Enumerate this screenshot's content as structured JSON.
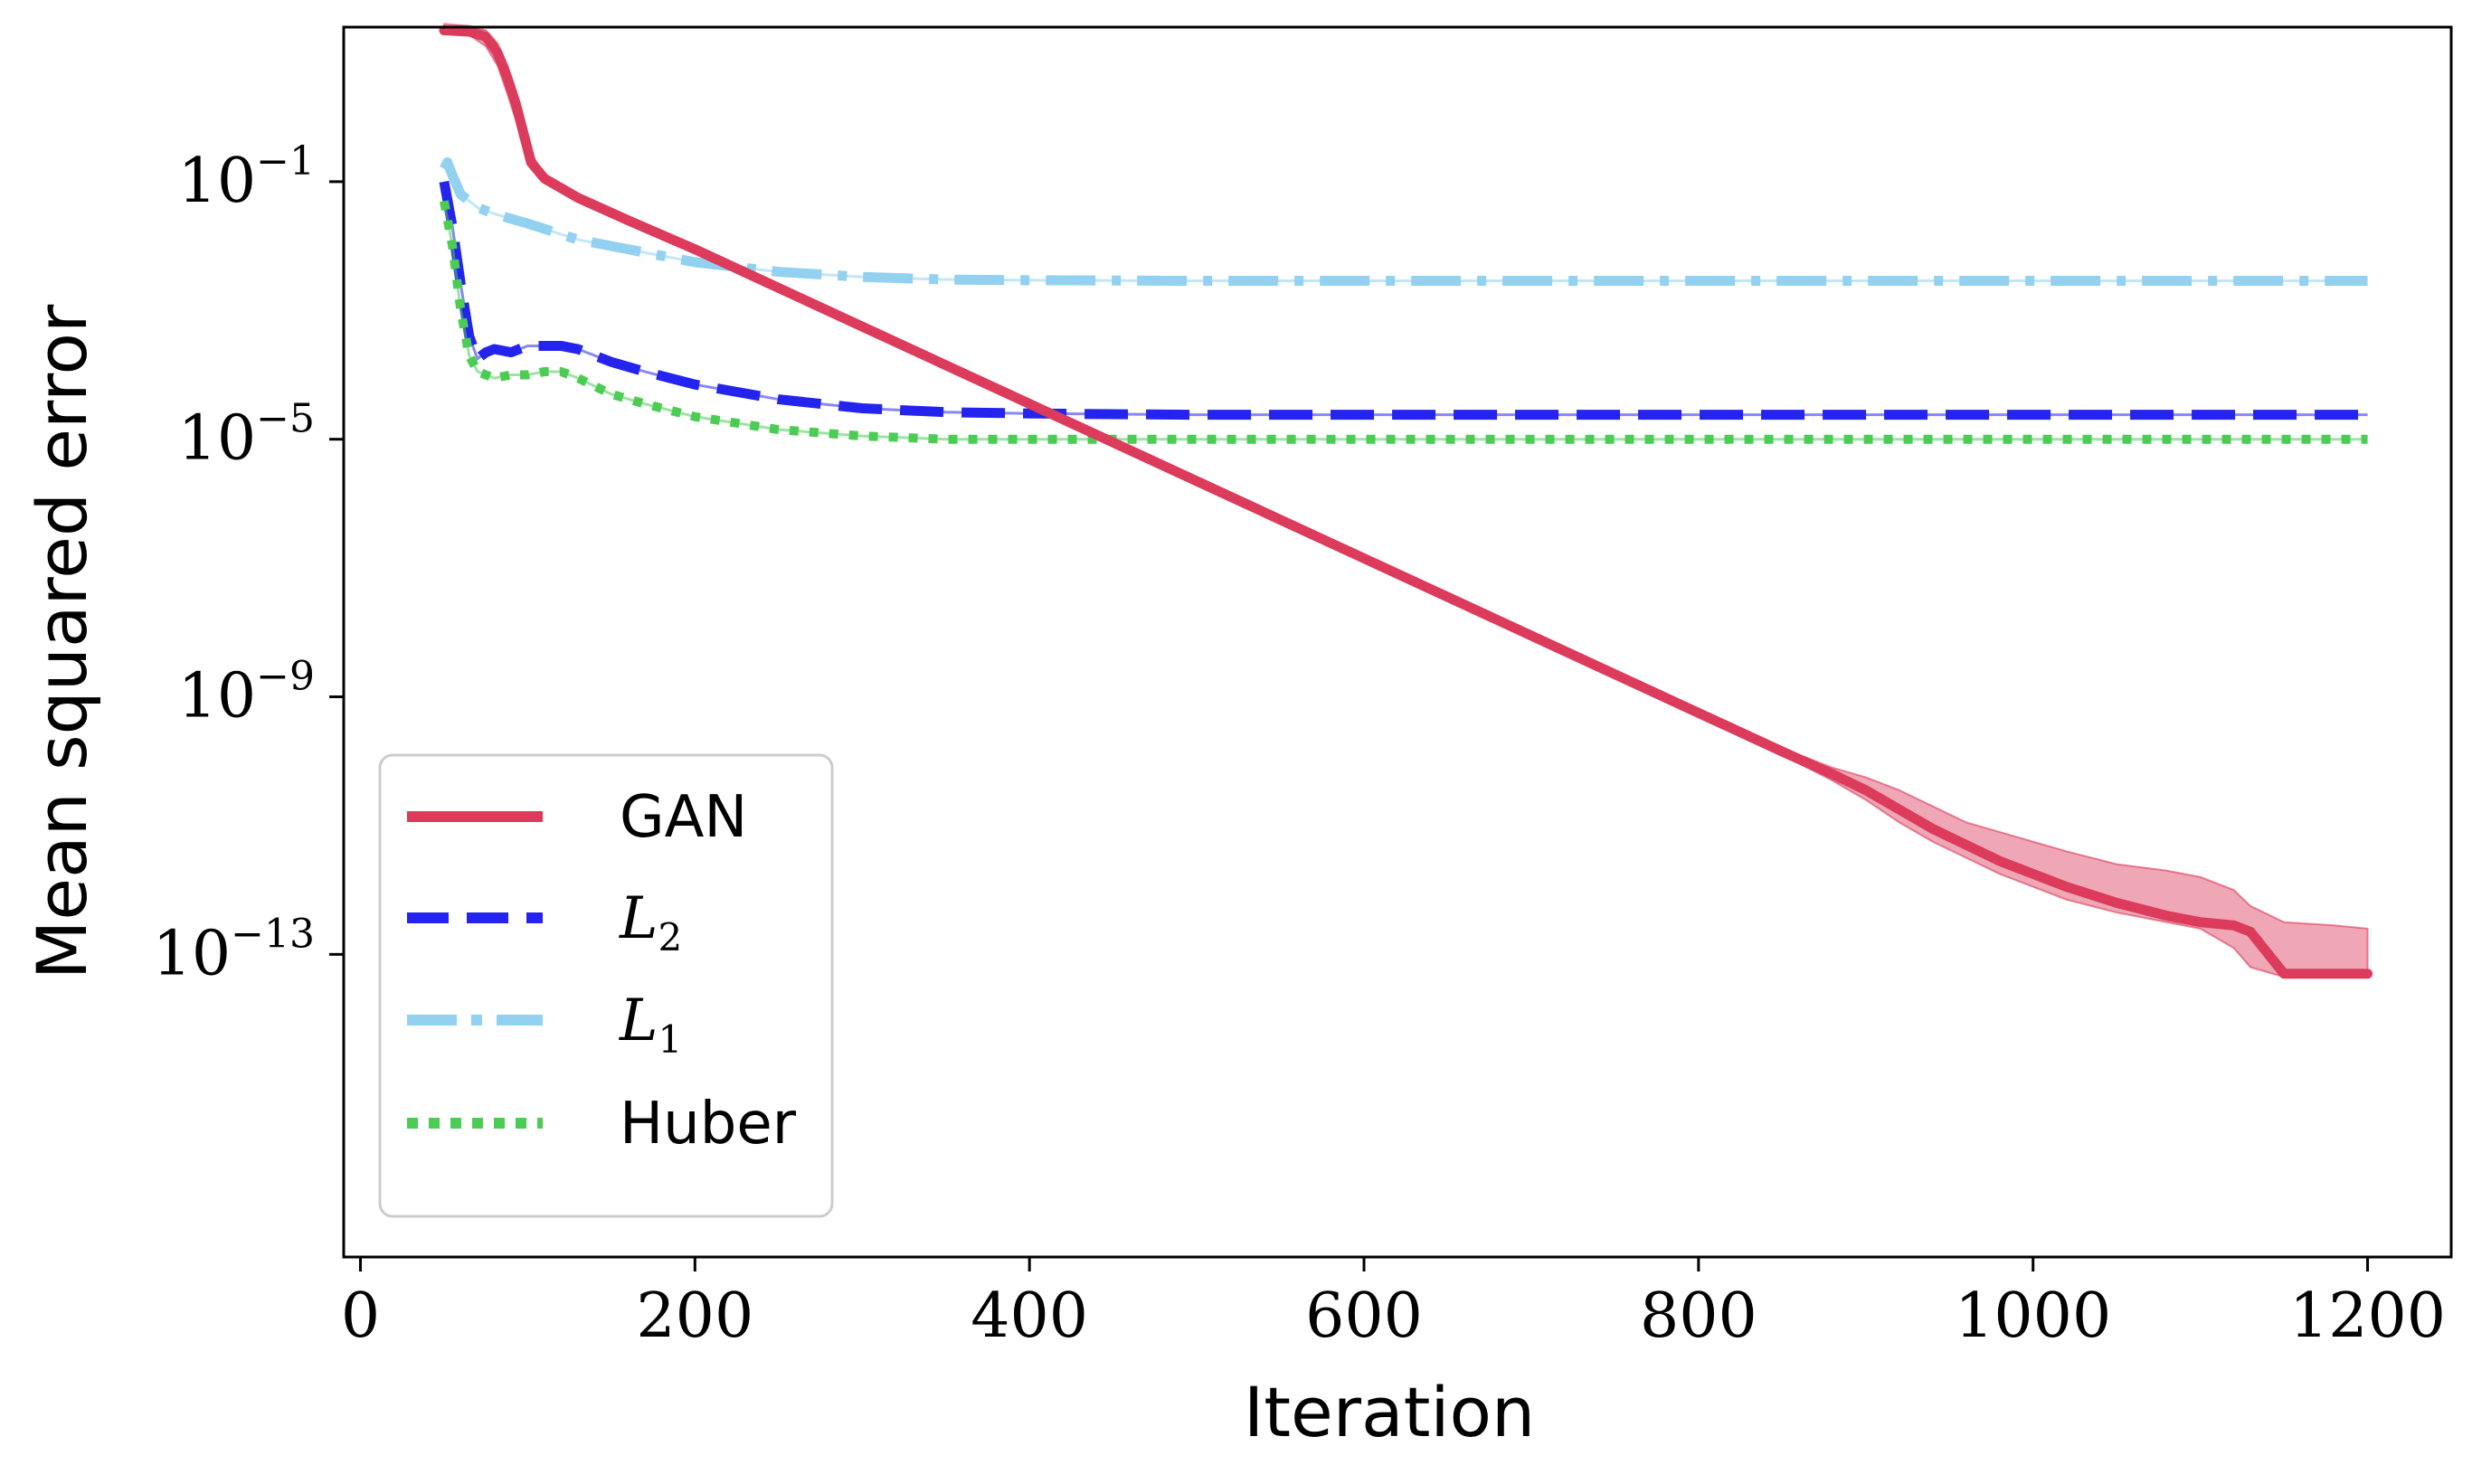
{
  "chart_data": {
    "type": "line",
    "xlabel": "Iteration",
    "ylabel": "Mean squared error",
    "yscale": "log",
    "xlim": [
      -10,
      1250
    ],
    "ylim_log10": [
      -17.7,
      1.4
    ],
    "x_ticks": [
      0,
      200,
      400,
      600,
      800,
      1000,
      1200
    ],
    "x_tick_labels": [
      "0",
      "200",
      "400",
      "600",
      "800",
      "1000",
      "1200"
    ],
    "y_ticks_log10": [
      -1,
      -5,
      -9,
      -13
    ],
    "y_tick_labels": [
      {
        "base": "10",
        "exp": "−1"
      },
      {
        "base": "10",
        "exp": "−5"
      },
      {
        "base": "10",
        "exp": "−9"
      },
      {
        "base": "10",
        "exp": "−13"
      }
    ],
    "legend": {
      "position": "lower-left",
      "entries": [
        {
          "key": "gan",
          "label": "GAN"
        },
        {
          "key": "l2",
          "label": "L",
          "sub": "2"
        },
        {
          "key": "l1",
          "label": "L",
          "sub": "1"
        },
        {
          "key": "huber",
          "label": "Huber"
        }
      ]
    },
    "series": [
      {
        "key": "gan",
        "name": "GAN",
        "color": "#dc3b5c",
        "style": "solid",
        "x": [
          50,
          65,
          75,
          82,
          88,
          93,
          98,
          102,
          110,
          130,
          160,
          200,
          250,
          300,
          350,
          400,
          450,
          500,
          550,
          600,
          650,
          700,
          750,
          800,
          850,
          880,
          900,
          920,
          940,
          960,
          980,
          1000,
          1020,
          1050,
          1080,
          1100,
          1120,
          1130,
          1150,
          1180,
          1200
        ],
        "y_log10": [
          1.35,
          1.33,
          1.25,
          1.0,
          0.6,
          0.2,
          -0.3,
          -0.7,
          -0.95,
          -1.25,
          -1.6,
          -2.05,
          -2.65,
          -3.25,
          -3.85,
          -4.45,
          -5.05,
          -5.65,
          -6.25,
          -6.85,
          -7.45,
          -8.05,
          -8.65,
          -9.25,
          -9.85,
          -10.2,
          -10.45,
          -10.75,
          -11.05,
          -11.3,
          -11.55,
          -11.75,
          -11.95,
          -12.2,
          -12.4,
          -12.5,
          -12.55,
          -12.65,
          -13.3,
          -13.3,
          -13.3
        ],
        "band_upper_log10": [
          1.45,
          1.42,
          1.35,
          1.15,
          0.8,
          0.4,
          -0.1,
          -0.55,
          -0.9,
          -1.2,
          -1.55,
          -2.0,
          -2.6,
          -3.2,
          -3.8,
          -4.4,
          -5.0,
          -5.6,
          -6.2,
          -6.8,
          -7.4,
          -8.0,
          -8.6,
          -9.2,
          -9.8,
          -10.1,
          -10.25,
          -10.45,
          -10.7,
          -10.95,
          -11.1,
          -11.25,
          -11.4,
          -11.6,
          -11.7,
          -11.8,
          -12.0,
          -12.25,
          -12.5,
          -12.55,
          -12.6
        ],
        "band_lower_log10": [
          1.3,
          1.28,
          1.1,
          0.8,
          0.35,
          -0.05,
          -0.5,
          -0.8,
          -1.0,
          -1.3,
          -1.65,
          -2.1,
          -2.7,
          -3.3,
          -3.9,
          -4.5,
          -5.1,
          -5.7,
          -6.3,
          -6.9,
          -7.5,
          -8.1,
          -8.7,
          -9.3,
          -9.9,
          -10.3,
          -10.6,
          -10.95,
          -11.25,
          -11.5,
          -11.75,
          -11.95,
          -12.15,
          -12.35,
          -12.5,
          -12.6,
          -12.9,
          -13.2,
          -13.35,
          -13.35,
          -13.35
        ]
      },
      {
        "key": "l2",
        "name": "L2",
        "color": "#2424ee",
        "style": "dashed",
        "x": [
          50,
          55,
          60,
          65,
          70,
          75,
          80,
          90,
          100,
          110,
          120,
          130,
          150,
          170,
          200,
          250,
          300,
          350,
          400,
          500,
          600,
          700,
          800,
          900,
          1000,
          1100,
          1200
        ],
        "y_log10": [
          -1.0,
          -1.7,
          -2.6,
          -3.4,
          -3.75,
          -3.65,
          -3.6,
          -3.65,
          -3.55,
          -3.55,
          -3.55,
          -3.6,
          -3.8,
          -3.95,
          -4.15,
          -4.38,
          -4.52,
          -4.58,
          -4.6,
          -4.62,
          -4.62,
          -4.62,
          -4.62,
          -4.62,
          -4.62,
          -4.62,
          -4.62
        ]
      },
      {
        "key": "l1",
        "name": "L1",
        "color": "#92d1ef",
        "style": "dashdot",
        "x": [
          50,
          52,
          55,
          60,
          70,
          80,
          100,
          130,
          160,
          200,
          250,
          300,
          350,
          400,
          500,
          600,
          700,
          800,
          900,
          1000,
          1100,
          1200
        ],
        "y_log10": [
          -0.8,
          -0.7,
          -0.9,
          -1.2,
          -1.4,
          -1.5,
          -1.65,
          -1.9,
          -2.05,
          -2.25,
          -2.4,
          -2.48,
          -2.52,
          -2.53,
          -2.54,
          -2.54,
          -2.54,
          -2.54,
          -2.54,
          -2.54,
          -2.54,
          -2.54
        ]
      },
      {
        "key": "huber",
        "name": "Huber",
        "color": "#4dcc55",
        "style": "dotted",
        "x": [
          50,
          55,
          60,
          65,
          70,
          80,
          90,
          100,
          110,
          120,
          130,
          150,
          170,
          200,
          250,
          300,
          350,
          400,
          500,
          600,
          700,
          800,
          900,
          1000,
          1100,
          1200
        ],
        "y_log10": [
          -1.3,
          -2.0,
          -3.0,
          -3.7,
          -3.95,
          -4.05,
          -4.0,
          -4.0,
          -3.95,
          -3.95,
          -4.05,
          -4.3,
          -4.45,
          -4.65,
          -4.85,
          -4.95,
          -5.0,
          -5.0,
          -5.0,
          -5.0,
          -5.0,
          -5.0,
          -5.0,
          -5.0,
          -5.0,
          -5.0
        ]
      }
    ]
  }
}
